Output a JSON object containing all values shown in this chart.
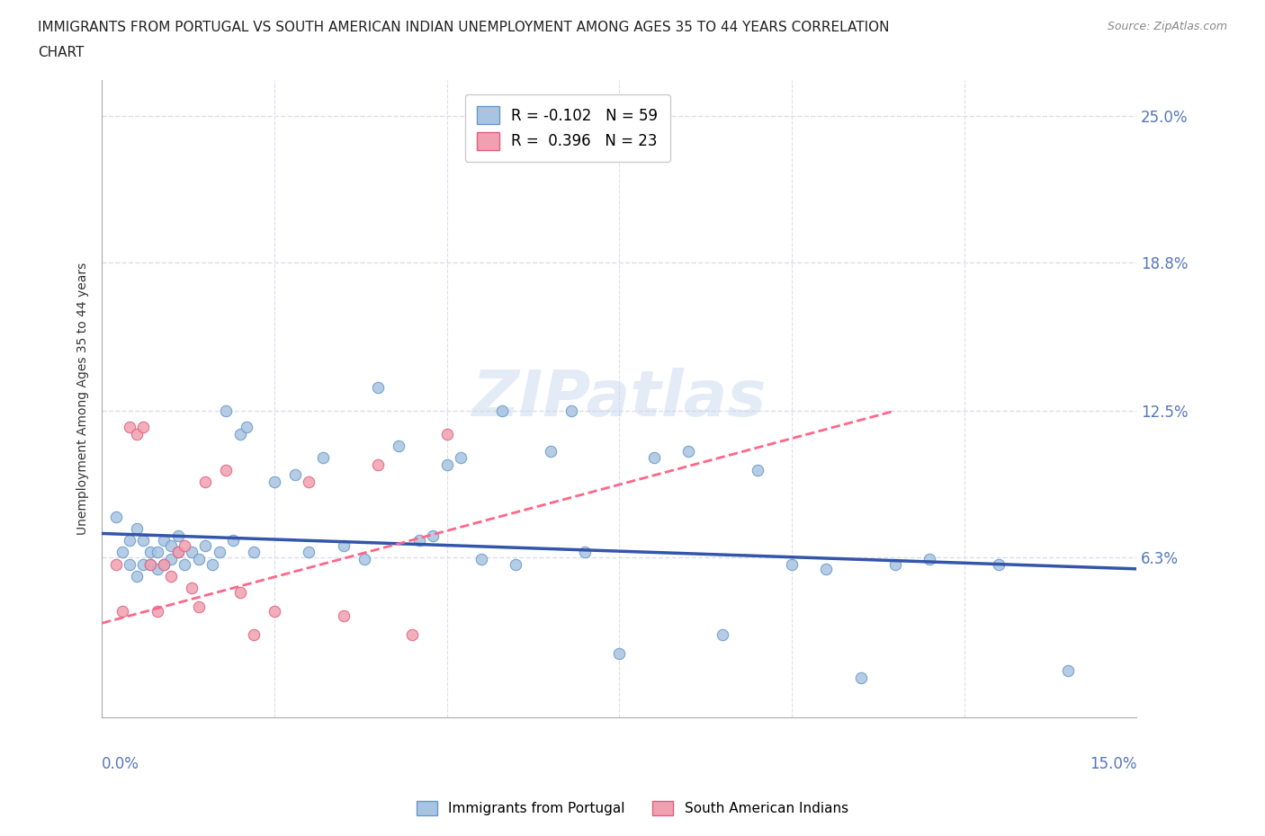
{
  "title_line1": "IMMIGRANTS FROM PORTUGAL VS SOUTH AMERICAN INDIAN UNEMPLOYMENT AMONG AGES 35 TO 44 YEARS CORRELATION",
  "title_line2": "CHART",
  "source": "Source: ZipAtlas.com",
  "xlabel_bottom_left": "0.0%",
  "xlabel_bottom_right": "15.0%",
  "ylabel_ticks": [
    0.0,
    0.063,
    0.125,
    0.188,
    0.25
  ],
  "ylabel_tick_labels": [
    "",
    "6.3%",
    "12.5%",
    "18.8%",
    "25.0%"
  ],
  "xlim": [
    0.0,
    0.15
  ],
  "ylim": [
    -0.005,
    0.265
  ],
  "legend_r1": "R = -0.102",
  "legend_n1": "N = 59",
  "legend_r2": "R =  0.396",
  "legend_n2": "N = 23",
  "color_blue": "#a8c4e0",
  "color_blue_dark": "#6699cc",
  "color_pink": "#f0a0b0",
  "color_pink_dark": "#e06080",
  "color_blue_line": "#3355aa",
  "color_pink_line": "#ff6688",
  "color_axis_label": "#5577bb",
  "watermark": "ZIPatlas",
  "blue_x": [
    0.002,
    0.003,
    0.004,
    0.004,
    0.005,
    0.005,
    0.006,
    0.006,
    0.007,
    0.007,
    0.008,
    0.008,
    0.009,
    0.009,
    0.01,
    0.01,
    0.011,
    0.011,
    0.012,
    0.013,
    0.014,
    0.015,
    0.016,
    0.017,
    0.018,
    0.019,
    0.02,
    0.021,
    0.022,
    0.025,
    0.028,
    0.03,
    0.032,
    0.035,
    0.038,
    0.04,
    0.043,
    0.046,
    0.048,
    0.05,
    0.052,
    0.055,
    0.058,
    0.06,
    0.065,
    0.068,
    0.07,
    0.075,
    0.08,
    0.085,
    0.09,
    0.095,
    0.1,
    0.105,
    0.11,
    0.115,
    0.12,
    0.13,
    0.14
  ],
  "blue_y": [
    0.08,
    0.065,
    0.07,
    0.06,
    0.055,
    0.075,
    0.06,
    0.07,
    0.065,
    0.06,
    0.058,
    0.065,
    0.06,
    0.07,
    0.062,
    0.068,
    0.065,
    0.072,
    0.06,
    0.065,
    0.062,
    0.068,
    0.06,
    0.065,
    0.125,
    0.07,
    0.115,
    0.118,
    0.065,
    0.095,
    0.098,
    0.065,
    0.105,
    0.068,
    0.062,
    0.135,
    0.11,
    0.07,
    0.072,
    0.102,
    0.105,
    0.062,
    0.125,
    0.06,
    0.108,
    0.125,
    0.065,
    0.022,
    0.105,
    0.108,
    0.03,
    0.1,
    0.06,
    0.058,
    0.012,
    0.06,
    0.062,
    0.06,
    0.015
  ],
  "pink_x": [
    0.002,
    0.003,
    0.004,
    0.005,
    0.006,
    0.007,
    0.008,
    0.009,
    0.01,
    0.011,
    0.012,
    0.013,
    0.014,
    0.015,
    0.018,
    0.02,
    0.022,
    0.025,
    0.03,
    0.035,
    0.04,
    0.045,
    0.05
  ],
  "pink_y": [
    0.06,
    0.04,
    0.118,
    0.115,
    0.118,
    0.06,
    0.04,
    0.06,
    0.055,
    0.065,
    0.068,
    0.05,
    0.042,
    0.095,
    0.1,
    0.048,
    0.03,
    0.04,
    0.095,
    0.038,
    0.102,
    0.03,
    0.115
  ],
  "background_color": "#ffffff",
  "grid_color": "#ddddee",
  "title_fontsize": 11,
  "axis_label_fontsize": 10,
  "blue_trend_x": [
    0.0,
    0.15
  ],
  "blue_trend_y": [
    0.073,
    0.058
  ],
  "pink_trend_x": [
    0.0,
    0.115
  ],
  "pink_trend_y": [
    0.035,
    0.125
  ]
}
